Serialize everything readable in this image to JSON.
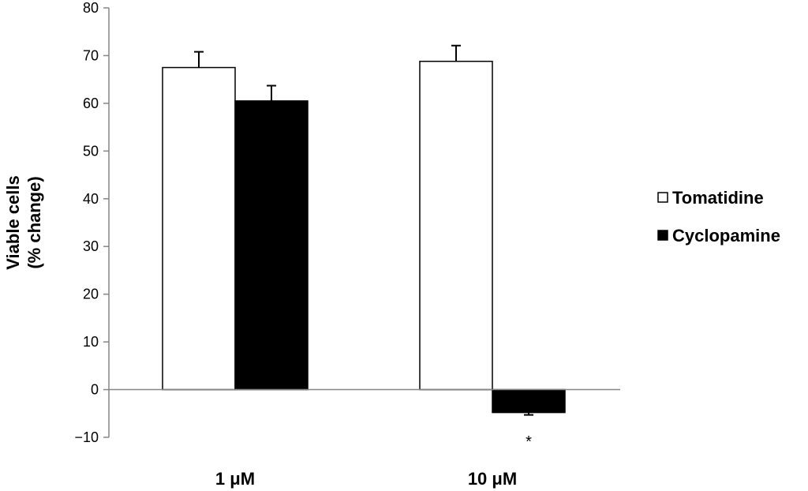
{
  "chart_data": {
    "type": "bar",
    "categories": [
      "1 μM",
      "10 μM"
    ],
    "series": [
      {
        "name": "Tomatidine",
        "values": [
          67.5,
          68.8
        ],
        "errors": [
          3.3,
          3.3
        ],
        "color": "#ffffff",
        "stroke": "#000000"
      },
      {
        "name": "Cyclopamine",
        "values": [
          60.5,
          -4.8
        ],
        "errors": [
          3.2,
          0.5
        ],
        "color": "#000000",
        "stroke": "#000000"
      }
    ],
    "ylabel_lines": [
      "Viable cells",
      "(% change)"
    ],
    "xlabel": "",
    "ylim": [
      -10,
      80
    ],
    "yticks": [
      -10,
      0,
      10,
      20,
      30,
      40,
      50,
      60,
      70,
      80
    ],
    "grid": false,
    "legend_position": "right",
    "annotations": [
      {
        "text": "*",
        "category": "10 μM",
        "series": "Cyclopamine"
      }
    ]
  }
}
